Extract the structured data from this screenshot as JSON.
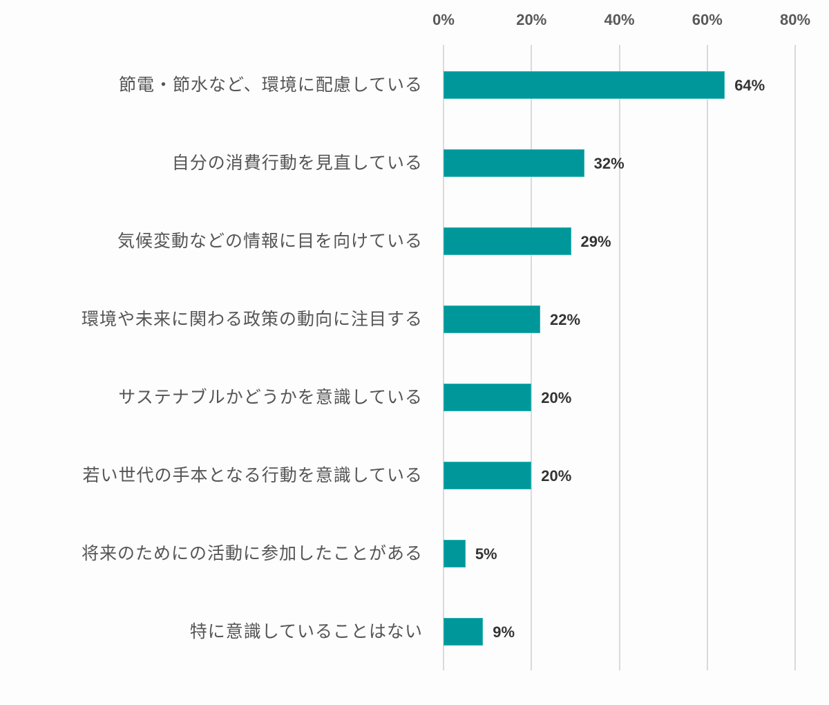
{
  "chart_data": {
    "type": "bar",
    "orientation": "horizontal",
    "title": "",
    "xlabel": "",
    "ylabel": "",
    "xlim": [
      0,
      80
    ],
    "x_ticks": [
      "0%",
      "20%",
      "40%",
      "60%",
      "80%"
    ],
    "x_tick_values": [
      0,
      20,
      40,
      60,
      80
    ],
    "grid": true,
    "legend": null,
    "bar_color": "#00979A",
    "categories": [
      "節電・節水など、環境に配慮している",
      "自分の消費行動を見直している",
      "気候変動などの情報に目を向けている",
      "環境や未来に関わる政策の動向に注目する",
      "サステナブルかどうかを意識している",
      "若い世代の手本となる行動を意識している",
      "将来のためにの活動に参加したことがある",
      "特に意識していることはない"
    ],
    "values": [
      64,
      32,
      29,
      22,
      20,
      20,
      5,
      9
    ],
    "value_labels": [
      "64%",
      "32%",
      "29%",
      "22%",
      "20%",
      "20%",
      "5%",
      "9%"
    ]
  }
}
